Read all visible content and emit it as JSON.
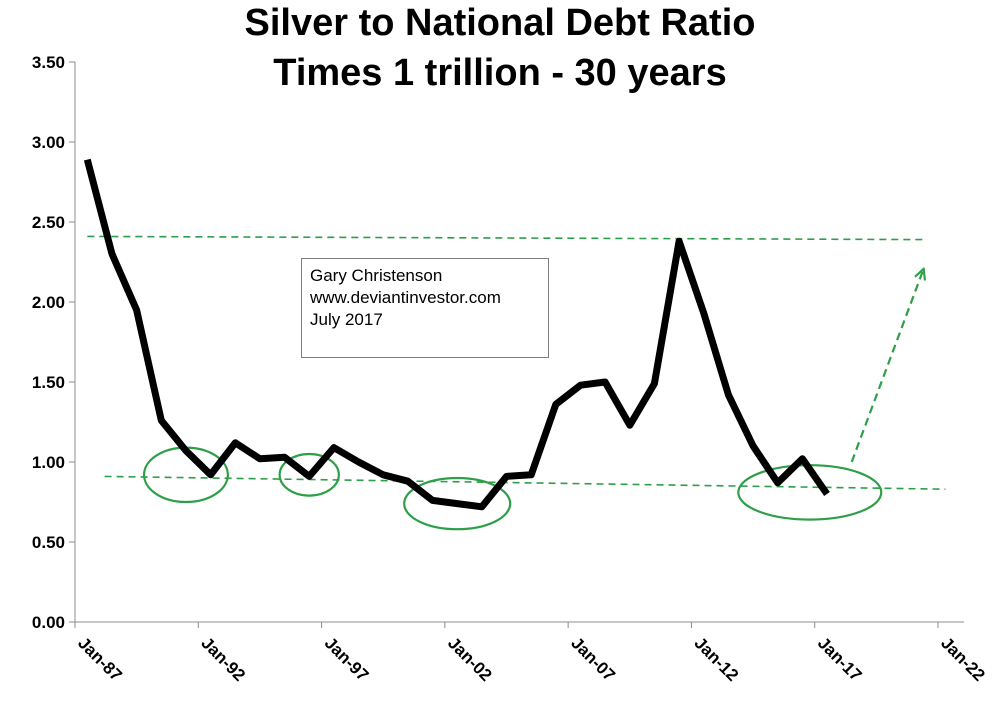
{
  "chart_data": {
    "type": "line",
    "title": [
      "Silver to National Debt Ratio",
      "Times 1 trillion - 30 years"
    ],
    "xlabel": "",
    "ylabel": "",
    "ylim": [
      0,
      3.5
    ],
    "yticks": [
      "0.00",
      "0.50",
      "1.00",
      "1.50",
      "2.00",
      "2.50",
      "3.00",
      "3.50"
    ],
    "xticks": [
      "Jan-87",
      "Jan-92",
      "Jan-97",
      "Jan-02",
      "Jan-07",
      "Jan-12",
      "Jan-17",
      "Jan-22"
    ],
    "xrange": [
      1987,
      2022
    ],
    "grid": false,
    "series": [
      {
        "name": "Silver to National Debt Ratio",
        "color": "#000000",
        "x": [
          1987.5,
          1988.5,
          1989.5,
          1990.5,
          1991.5,
          1992.5,
          1993.5,
          1994.5,
          1995.5,
          1996.5,
          1997.5,
          1998.5,
          1999.5,
          2000.5,
          2001.5,
          2002.5,
          2003.5,
          2004.5,
          2005.5,
          2006.5,
          2007.5,
          2008.5,
          2009.5,
          2010.5,
          2011.5,
          2012.5,
          2013.5,
          2014.5,
          2015.5,
          2016.5,
          2017.5
        ],
        "values": [
          2.89,
          2.3,
          1.95,
          1.26,
          1.07,
          0.92,
          1.12,
          1.02,
          1.03,
          0.91,
          1.09,
          1.0,
          0.92,
          0.88,
          0.76,
          0.74,
          0.72,
          0.91,
          0.92,
          1.36,
          1.48,
          1.5,
          1.23,
          1.49,
          2.38,
          1.93,
          1.42,
          1.1,
          0.87,
          1.02,
          0.8
        ]
      }
    ],
    "trendlines": [
      {
        "name": "upper-resistance",
        "color": "#2e9e48",
        "x": [
          1987.5,
          2021.5
        ],
        "values": [
          2.41,
          2.39
        ]
      },
      {
        "name": "lower-support",
        "color": "#2e9e48",
        "x": [
          1988.2,
          2022.3
        ],
        "values": [
          0.91,
          0.83
        ]
      }
    ],
    "arrow": {
      "color": "#2e9e48",
      "from": [
        2018.5,
        1.0
      ],
      "to": [
        2021.4,
        2.2
      ]
    },
    "circles": [
      {
        "cx": 1991.5,
        "cy": 0.92,
        "rx": 1.7,
        "ry": 0.17
      },
      {
        "cx": 1996.5,
        "cy": 0.92,
        "rx": 1.2,
        "ry": 0.13
      },
      {
        "cx": 2002.5,
        "cy": 0.74,
        "rx": 2.15,
        "ry": 0.16
      },
      {
        "cx": 2016.8,
        "cy": 0.81,
        "rx": 2.9,
        "ry": 0.17
      }
    ],
    "annotation": {
      "lines": [
        "Gary Christenson",
        "www.deviantinvestor.com",
        "July 2017"
      ]
    }
  }
}
